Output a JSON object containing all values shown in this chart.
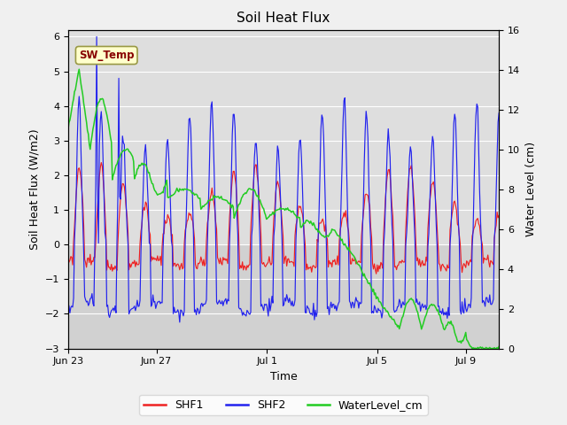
{
  "title": "Soil Heat Flux",
  "xlabel": "Time",
  "ylabel_left": "Soil Heat Flux (W/m2)",
  "ylabel_right": "Water Level (cm)",
  "ylim_left": [
    -3.0,
    6.2
  ],
  "ylim_right": [
    0,
    16
  ],
  "yticks_left": [
    -3.0,
    -2.0,
    -1.0,
    0.0,
    1.0,
    2.0,
    3.0,
    4.0,
    5.0,
    6.0
  ],
  "yticks_right": [
    0,
    2,
    4,
    6,
    8,
    10,
    12,
    14,
    16
  ],
  "fig_bg_color": "#f0f0f0",
  "plot_bg_upper": "#d8d8d8",
  "plot_bg_lower": "#e8e8e8",
  "grid_color": "#ffffff",
  "shf1_color": "#ee2222",
  "shf2_color": "#2222ee",
  "water_color": "#22cc22",
  "annotation_text": "SW_Temp",
  "annotation_bg": "#ffffcc",
  "annotation_fg": "#880000",
  "tick_labels": [
    "Jun 23",
    "Jun 27",
    "Jul 1",
    "Jul 5",
    "Jul 9"
  ],
  "tick_positions": [
    0,
    4,
    9,
    14,
    18
  ],
  "xlim": [
    0,
    19.5
  ]
}
